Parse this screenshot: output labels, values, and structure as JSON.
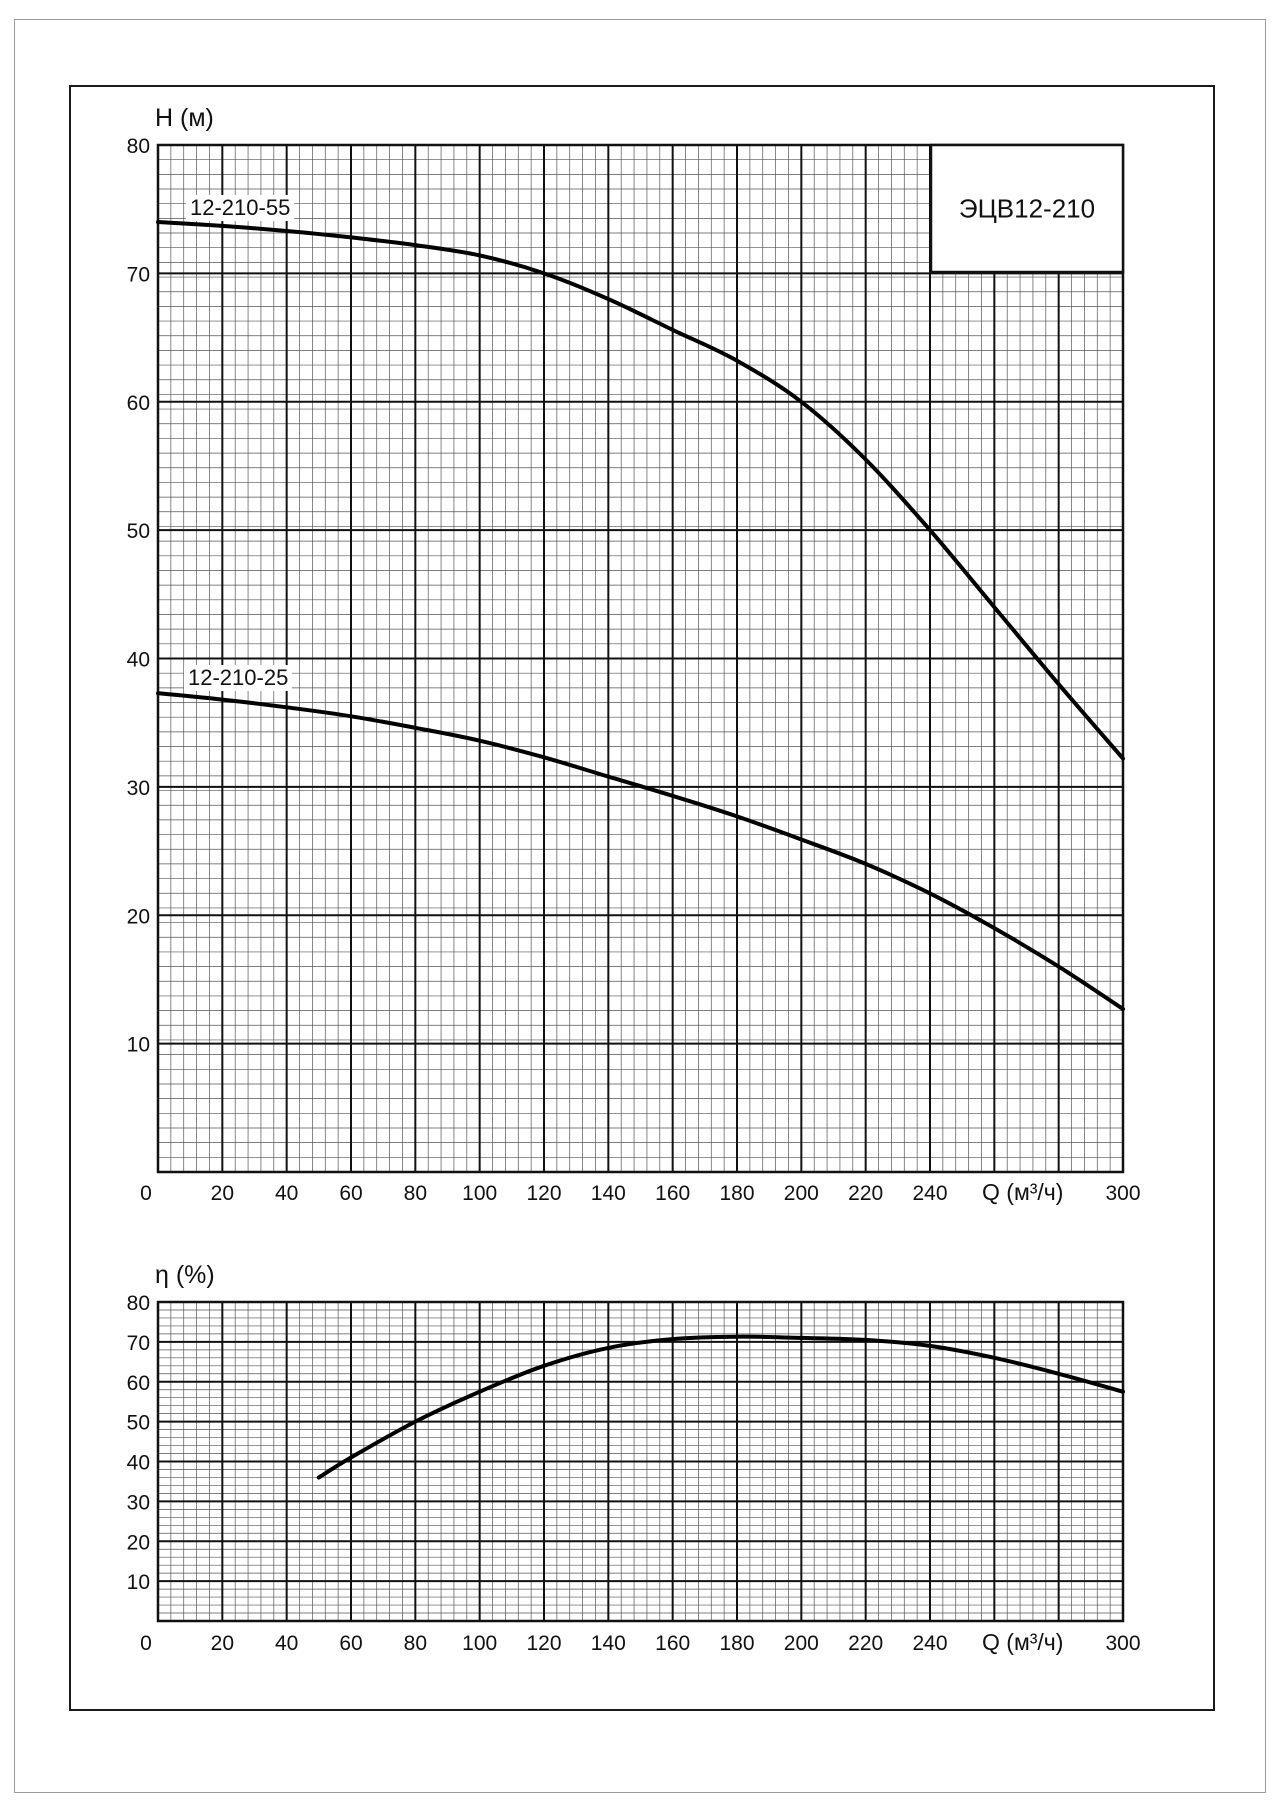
{
  "chart_data": [
    {
      "type": "line",
      "title": "ЭЦВ12-210",
      "ylabel": "H (м)",
      "xlabel": "Q (м³/ч)",
      "xlim": [
        0,
        300
      ],
      "ylim": [
        0,
        80
      ],
      "x_ticks": [
        0,
        20,
        40,
        60,
        80,
        100,
        120,
        140,
        160,
        180,
        200,
        220,
        240,
        300
      ],
      "y_ticks": [
        10,
        20,
        30,
        40,
        50,
        60,
        70,
        80
      ],
      "grid": true,
      "series": [
        {
          "name": "12-210-55",
          "x": [
            0,
            20,
            40,
            60,
            80,
            100,
            120,
            140,
            160,
            180,
            200,
            220,
            240,
            260,
            280,
            300
          ],
          "y": [
            74,
            73.7,
            73.3,
            72.8,
            72.2,
            71.4,
            70,
            68,
            65.6,
            63.2,
            60,
            55.5,
            50,
            44,
            38,
            32.2
          ]
        },
        {
          "name": "12-210-25",
          "x": [
            0,
            20,
            40,
            60,
            80,
            100,
            120,
            140,
            160,
            180,
            200,
            220,
            240,
            260,
            280,
            300
          ],
          "y": [
            37.3,
            36.8,
            36.2,
            35.5,
            34.6,
            33.6,
            32.3,
            30.8,
            29.3,
            27.7,
            25.9,
            24,
            21.7,
            19,
            16,
            12.7
          ]
        }
      ]
    },
    {
      "type": "line",
      "title": "",
      "ylabel": "η (%)",
      "xlabel": "Q (м³/ч)",
      "xlim": [
        0,
        300
      ],
      "ylim": [
        0,
        80
      ],
      "x_ticks": [
        0,
        20,
        40,
        60,
        80,
        100,
        120,
        140,
        160,
        180,
        200,
        220,
        240,
        300
      ],
      "y_ticks": [
        10,
        20,
        30,
        40,
        50,
        60,
        70,
        80
      ],
      "grid": true,
      "series": [
        {
          "x": [
            50,
            60,
            80,
            100,
            120,
            140,
            160,
            180,
            200,
            220,
            240,
            260,
            280,
            300
          ],
          "y": [
            36,
            41,
            50,
            57.5,
            64,
            68.5,
            70.7,
            71.3,
            71,
            70.5,
            69,
            66,
            62,
            57.5
          ]
        }
      ]
    }
  ]
}
